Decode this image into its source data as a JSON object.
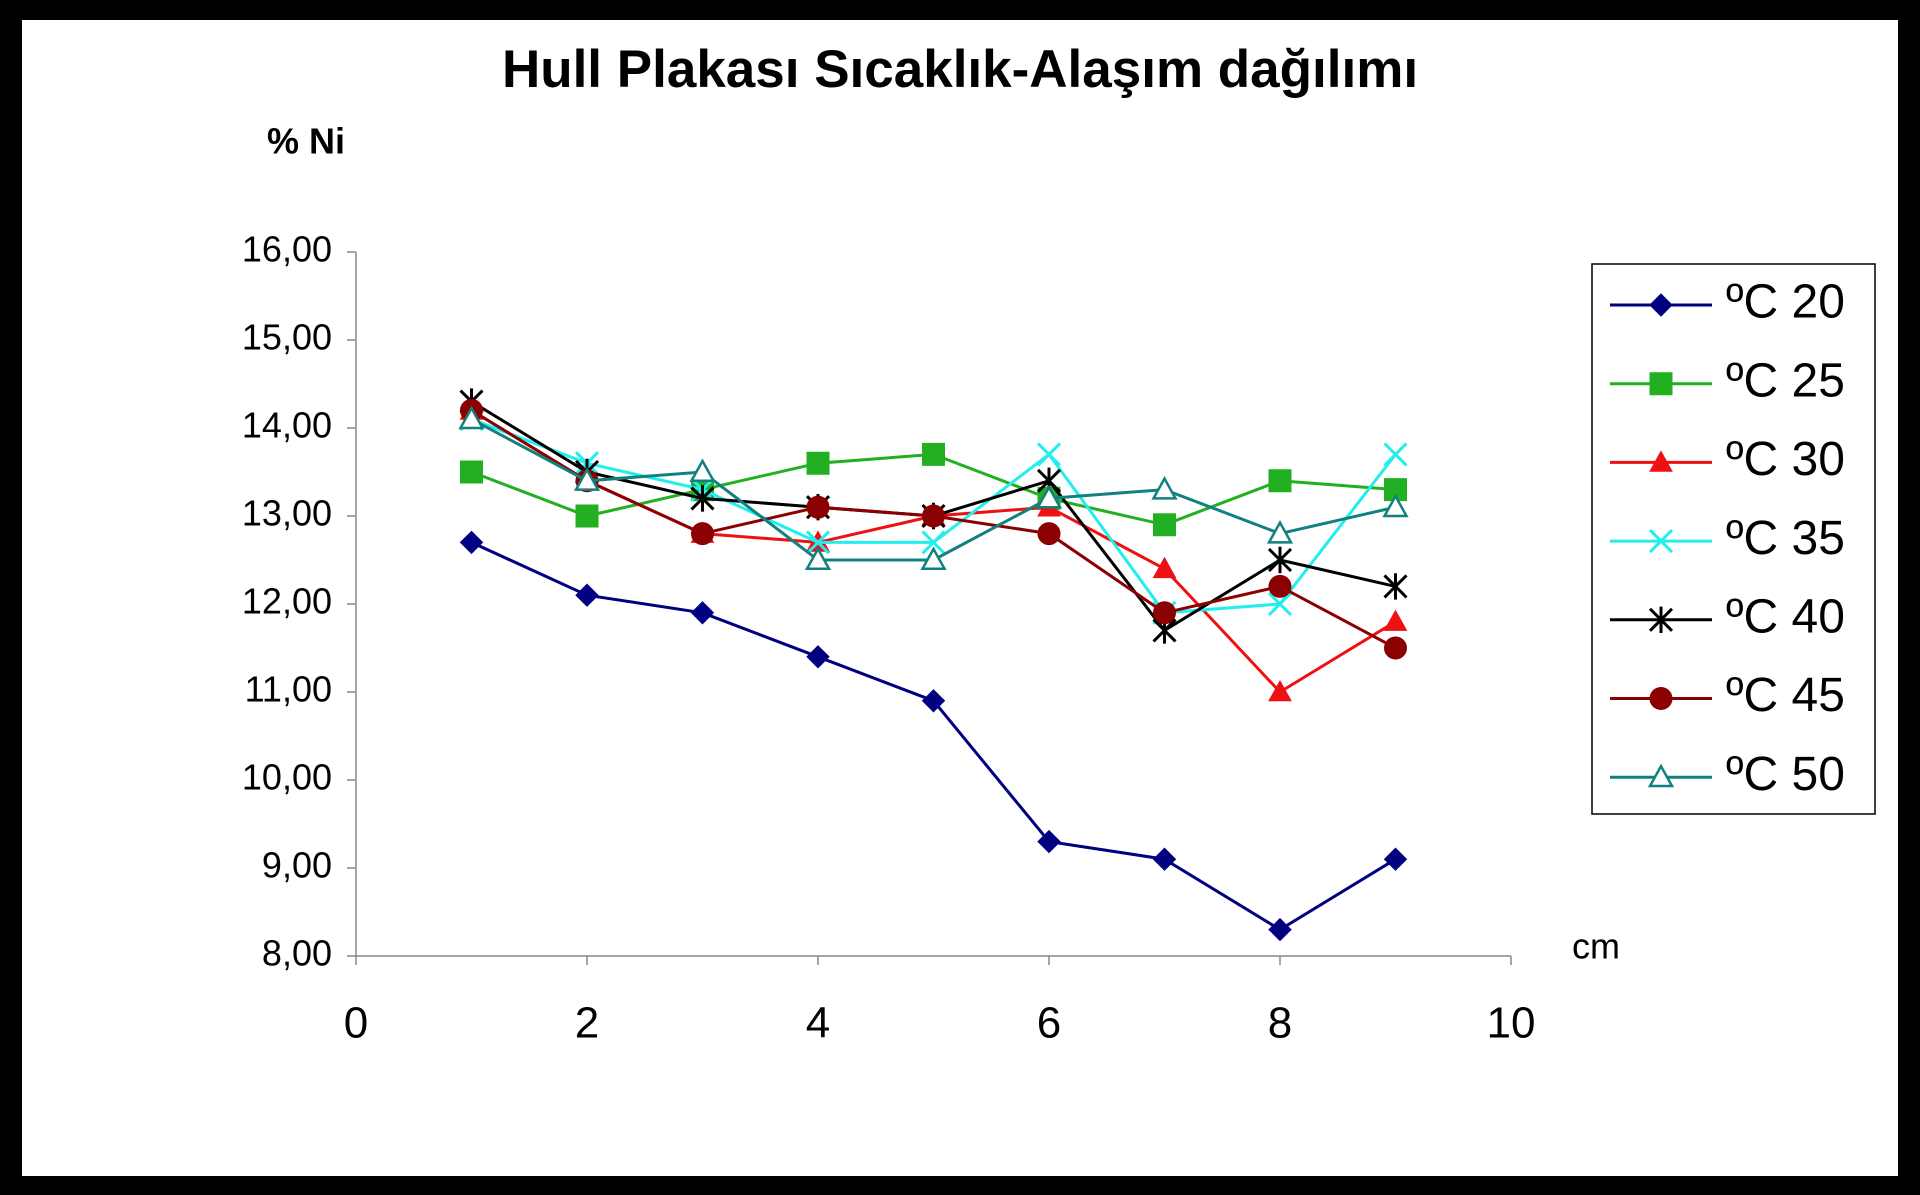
{
  "chart_data": {
    "type": "line",
    "title": "Hull Plakası Sıcaklık-Alaşım dağılımı",
    "y_label": "% Ni",
    "x_label": "cm",
    "x": [
      1,
      2,
      3,
      4,
      5,
      6,
      7,
      8,
      9
    ],
    "xlim": [
      0,
      10
    ],
    "xticks": [
      0,
      2,
      4,
      6,
      8,
      10
    ],
    "ylim": [
      8,
      16
    ],
    "yticks": [
      {
        "value": 8,
        "label": "8,00"
      },
      {
        "value": 9,
        "label": "9,00"
      },
      {
        "value": 10,
        "label": "10,00"
      },
      {
        "value": 11,
        "label": "11,00"
      },
      {
        "value": 12,
        "label": "12,00"
      },
      {
        "value": 13,
        "label": "13,00"
      },
      {
        "value": 14,
        "label": "14,00"
      },
      {
        "value": 15,
        "label": "15,00"
      },
      {
        "value": 16,
        "label": "16,00"
      }
    ],
    "grid": false,
    "legend": "right",
    "series": [
      {
        "name": "ºC 20",
        "color": "#000080",
        "marker": "diamond",
        "values": [
          12.7,
          12.1,
          11.9,
          11.4,
          10.9,
          9.3,
          9.1,
          8.3,
          9.1
        ]
      },
      {
        "name": "ºC 25",
        "color": "#22b022",
        "marker": "square",
        "values": [
          13.5,
          13.0,
          13.3,
          13.6,
          13.7,
          13.2,
          12.9,
          13.4,
          13.3
        ]
      },
      {
        "name": "ºC 30",
        "color": "#ee1111",
        "marker": "triangle",
        "values": [
          14.2,
          13.4,
          12.8,
          12.7,
          13.0,
          13.1,
          12.4,
          11.0,
          11.8
        ]
      },
      {
        "name": "ºC 35",
        "color": "#22eeee",
        "marker": "x",
        "values": [
          14.1,
          13.6,
          13.3,
          12.7,
          12.7,
          13.7,
          11.9,
          12.0,
          13.7
        ]
      },
      {
        "name": "ºC 40",
        "color": "#000000",
        "marker": "star",
        "values": [
          14.3,
          13.5,
          13.2,
          13.1,
          13.0,
          13.4,
          11.7,
          12.5,
          12.2
        ]
      },
      {
        "name": "ºC 45",
        "color": "#8b0000",
        "marker": "circle",
        "values": [
          14.2,
          13.4,
          12.8,
          13.1,
          13.0,
          12.8,
          11.9,
          12.2,
          11.5
        ]
      },
      {
        "name": "ºC 50",
        "color": "#138080",
        "marker": "open-triangle",
        "values": [
          14.1,
          13.4,
          13.5,
          12.5,
          12.5,
          13.2,
          13.3,
          12.8,
          13.1
        ]
      }
    ]
  }
}
